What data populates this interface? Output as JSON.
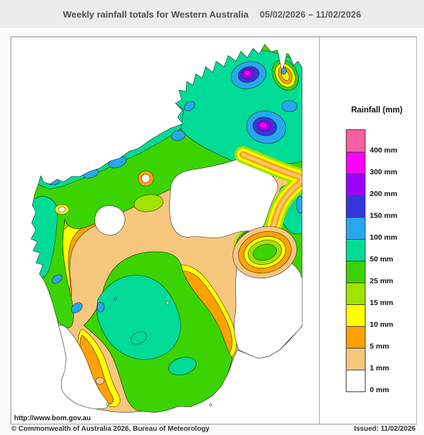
{
  "header": {
    "title": "Weekly rainfall totals for Western Australia",
    "period": "05/02/2026 – 11/02/2026"
  },
  "legend": {
    "title": "Rainfall (mm)",
    "entries": [
      {
        "level": "400",
        "label": "400 mm",
        "color": "#f7609f"
      },
      {
        "level": "300",
        "label": "300 mm",
        "color": "#ff00ff"
      },
      {
        "level": "200",
        "label": "200 mm",
        "color": "#9d00ff"
      },
      {
        "level": "150",
        "label": "150 mm",
        "color": "#3636e0"
      },
      {
        "level": "100",
        "label": "100 mm",
        "color": "#27a8ee"
      },
      {
        "level": "50",
        "label": "50 mm",
        "color": "#00dc96"
      },
      {
        "level": "25",
        "label": "25 mm",
        "color": "#3bd400"
      },
      {
        "level": "15",
        "label": "15 mm",
        "color": "#a2e200"
      },
      {
        "level": "10",
        "label": "10 mm",
        "color": "#ffff00"
      },
      {
        "level": "5",
        "label": "5 mm",
        "color": "#ffa200"
      },
      {
        "level": "1",
        "label": "1 mm",
        "color": "#f8c77e"
      },
      {
        "level": "0",
        "label": "0 mm",
        "color": "#ffffff"
      }
    ]
  },
  "footer": {
    "url": "http://www.bom.gov.au",
    "copyright": "© Commonwealth of Australia 2026, Bureau of Meteorology",
    "issued": "Issued: 11/02/2026"
  },
  "chart_data": {
    "type": "heatmap",
    "title": "Weekly rainfall totals for Western Australia",
    "period": "05/02/2026 – 11/02/2026",
    "region": "Western Australia",
    "unit": "mm",
    "levels_mm": [
      0,
      1,
      5,
      10,
      15,
      25,
      50,
      100,
      150,
      200,
      300,
      400
    ],
    "legend_position": "right",
    "observed_pattern": {
      "highest": "300–400 mm cores in the Kimberley (north)",
      "coastal_northwest": "50–150 mm band along northwest coast",
      "interior": "0–5 mm over central and southeast interior",
      "goldfields_south": "25–100 mm across southern inland and south coast",
      "driest": "0–1 mm in central desert, southeast corner and lower west coast"
    }
  }
}
